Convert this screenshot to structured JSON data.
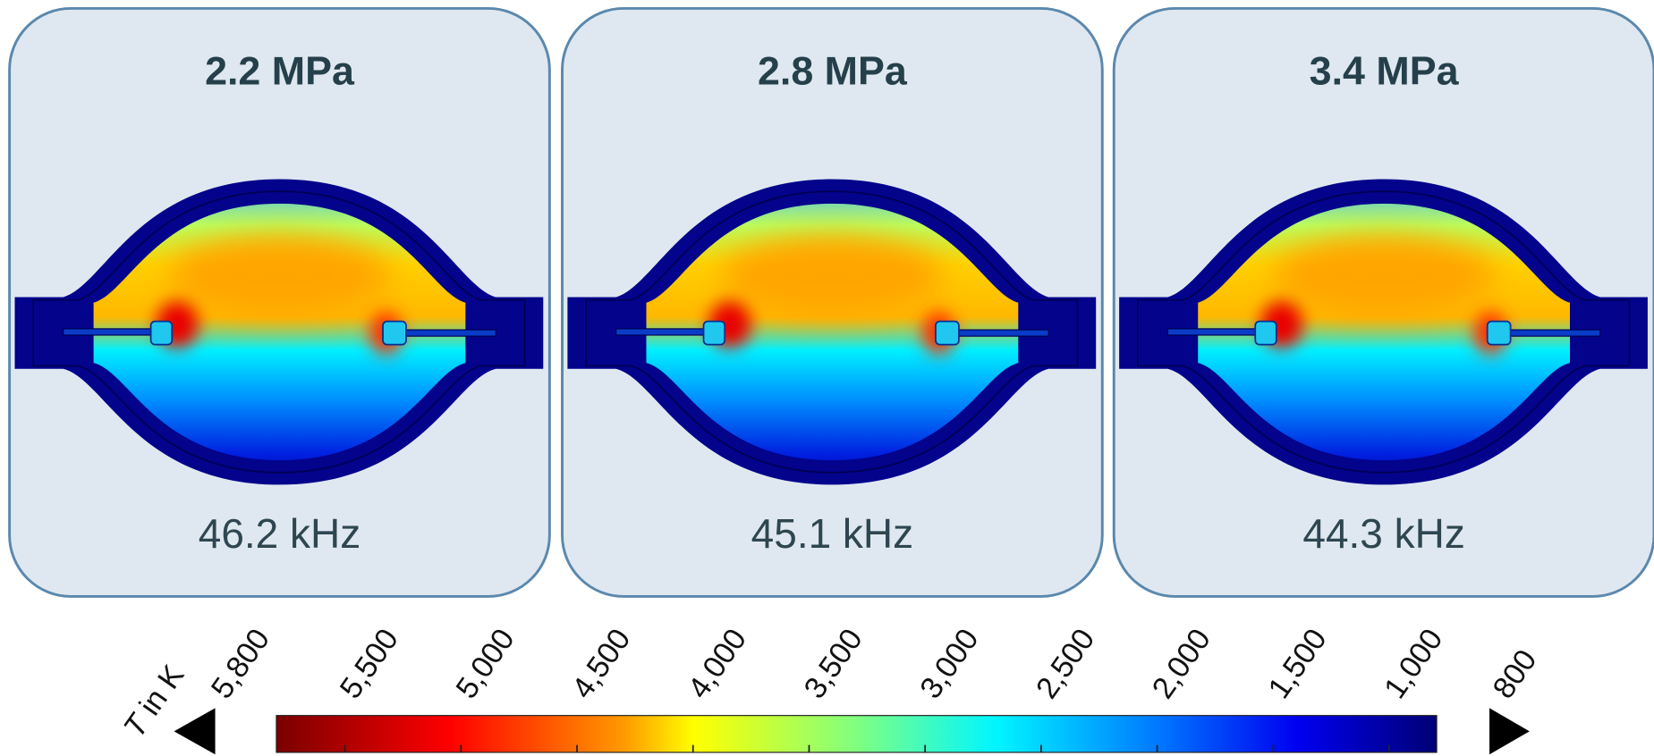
{
  "panels": [
    {
      "title": "2.2 MPa",
      "frequency": "46.2 kHz"
    },
    {
      "title": "2.8 MPa",
      "frequency": "45.1 kHz"
    },
    {
      "title": "3.4 MPa",
      "frequency": "44.3 kHz"
    }
  ],
  "colorbar": {
    "label_symbol": "T",
    "label_rest": "in K",
    "tick_labels": [
      "5,800",
      "5,500",
      "5,000",
      "4,500",
      "4,000",
      "3,500",
      "3,000",
      "2,500",
      "2,000",
      "1,500",
      "1,000",
      "800"
    ]
  }
}
